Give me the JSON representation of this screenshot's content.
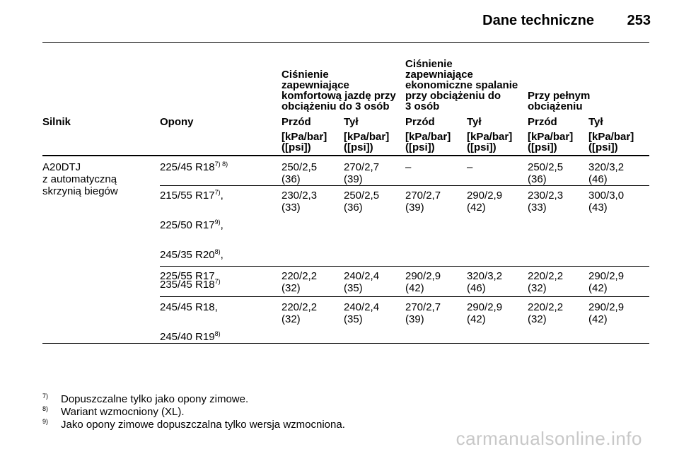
{
  "header": {
    "title": "Dane techniczne",
    "page_number": "253"
  },
  "table": {
    "group_headers": [
      [
        "Ciśnienie",
        "zapewniające",
        "komfortową jazdę przy",
        "obciążeniu do 3 osób"
      ],
      [
        "Ciśnienie",
        "zapewniające",
        "ekonomiczne spalanie",
        "przy obciążeniu do",
        "3 osób"
      ],
      [
        "Przy pełnym",
        "obciążeniu"
      ]
    ],
    "col_headers": [
      "Silnik",
      "Opony",
      "Przód",
      "Tył",
      "Przód",
      "Tył",
      "Przód",
      "Tył"
    ],
    "unit_label": [
      "[kPa/bar]",
      "([psi])"
    ],
    "engine": [
      "A20DTJ",
      "z automatyczną",
      "skrzynią biegów"
    ],
    "rows": [
      {
        "tyres": [
          {
            "t": "225/45 R18",
            "sup": "7) 8)"
          }
        ],
        "values": [
          [
            "250/2,5",
            "(36)"
          ],
          [
            "270/2,7",
            "(39)"
          ],
          [
            "–",
            ""
          ],
          [
            "–",
            ""
          ],
          [
            "250/2,5",
            "(36)"
          ],
          [
            "320/3,2",
            "(46)"
          ]
        ]
      },
      {
        "tyres": [
          {
            "t": "215/55 R17",
            "sup": "7)",
            "after": ","
          },
          {
            "t": "225/50 R17",
            "sup": "9)",
            "after": ","
          },
          {
            "t": "245/35 R20",
            "sup": "8)",
            "after": ","
          },
          {
            "t": "235/45 R18",
            "sup": "7)"
          }
        ],
        "values": [
          [
            "230/2,3",
            "(33)"
          ],
          [
            "250/2,5",
            "(36)"
          ],
          [
            "270/2,7",
            "(39)"
          ],
          [
            "290/2,9",
            "(42)"
          ],
          [
            "230/2,3",
            "(33)"
          ],
          [
            "300/3,0",
            "(43)"
          ]
        ]
      },
      {
        "tyres": [
          {
            "t": "225/55 R17"
          }
        ],
        "values": [
          [
            "220/2,2",
            "(32)"
          ],
          [
            "240/2,4",
            "(35)"
          ],
          [
            "290/2,9",
            "(42)"
          ],
          [
            "320/3,2",
            "(46)"
          ],
          [
            "220/2,2",
            "(32)"
          ],
          [
            "290/2,9",
            "(42)"
          ]
        ]
      },
      {
        "tyres": [
          {
            "t": "245/45 R18",
            "after": ","
          },
          {
            "t": "245/40 R19",
            "sup": "8)"
          }
        ],
        "values": [
          [
            "220/2,2",
            "(32)"
          ],
          [
            "240/2,4",
            "(35)"
          ],
          [
            "270/2,7",
            "(39)"
          ],
          [
            "290/2,9",
            "(42)"
          ],
          [
            "220/2,2",
            "(32)"
          ],
          [
            "290/2,9",
            "(42)"
          ]
        ]
      }
    ]
  },
  "footnotes": [
    {
      "num": "7)",
      "text": "Dopuszczalne tylko jako opony zimowe."
    },
    {
      "num": "8)",
      "text": "Wariant wzmocniony (XL)."
    },
    {
      "num": "9)",
      "text": "Jako opony zimowe dopuszczalna tylko wersja wzmocniona."
    }
  ],
  "watermark": "carmanualsonline.info"
}
